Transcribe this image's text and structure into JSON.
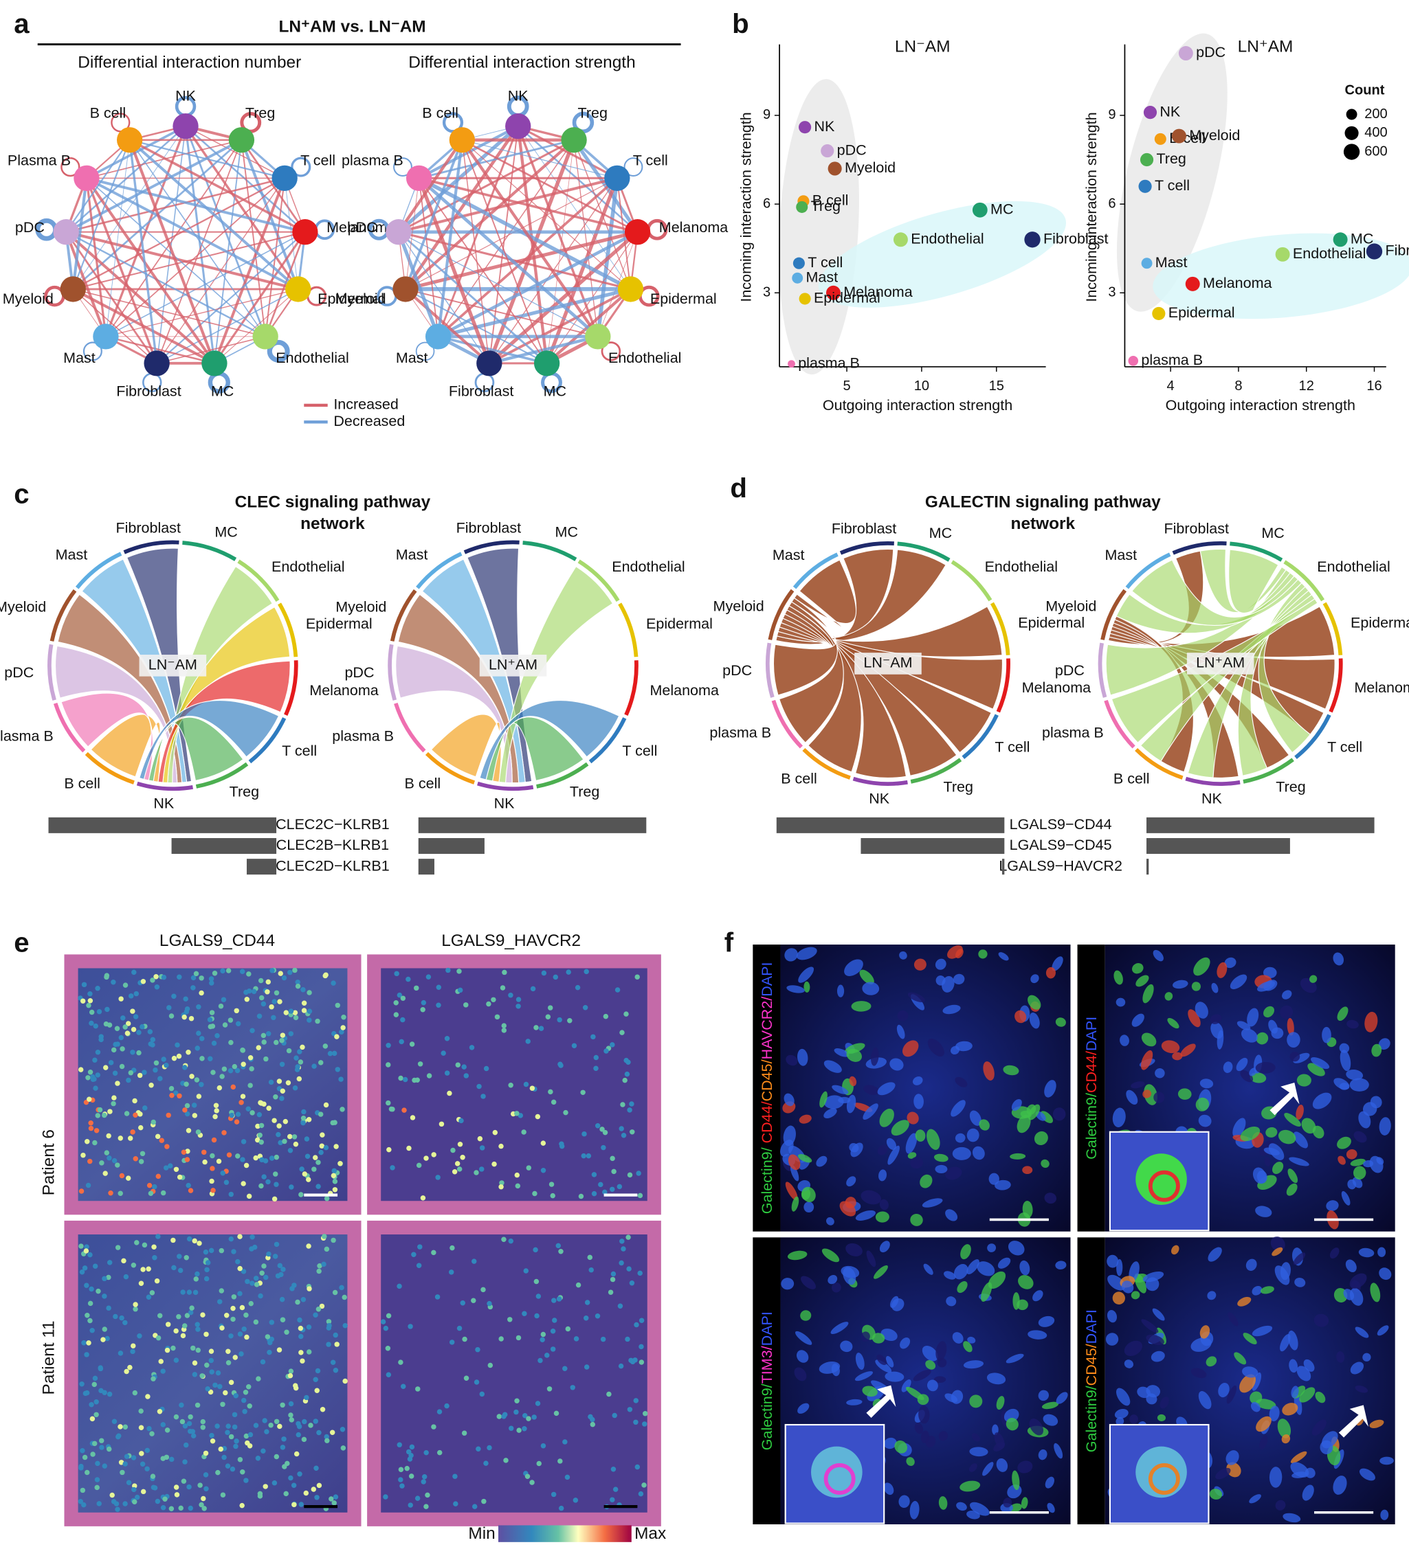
{
  "panel_labels": [
    "a",
    "b",
    "c",
    "d",
    "e",
    "f"
  ],
  "cell_colors": {
    "nk": "#8e44ad",
    "treg": "#4caf50",
    "t cell": "#2e7bbf",
    "melanoma": "#e41a1c",
    "epidermal": "#e6c200",
    "endothelial": "#a6d96a",
    "mc": "#1f9e6e",
    "fibroblast": "#1f2a6b",
    "mast": "#5dade2",
    "myeloid": "#a0522d",
    "pdc": "#c9a6d6",
    "plasma b": "#ef6fb0",
    "b cell": "#f39c12"
  },
  "panel_a": {
    "title": "LN⁺AM vs. LN⁻AM",
    "networks": [
      {
        "subtitle": "Differential interaction number",
        "nodes": [
          "NK",
          "Treg",
          "T cell",
          "Melanoma",
          "Epidermal",
          "Endothelial",
          "MC",
          "Fibroblast",
          "Mast",
          "Myeloid",
          "pDC",
          "Plasma B",
          "B cell"
        ]
      },
      {
        "subtitle": "Differential interaction strength",
        "nodes": [
          "NK",
          "Treg",
          "T cell",
          "Melanoma",
          "Epidermal",
          "Endothelial",
          "MC",
          "Fibroblast",
          "Mast",
          "Myeloid",
          "pDC",
          "plasma B",
          "B cell"
        ]
      }
    ],
    "legend": [
      {
        "name": "Increased",
        "color": "#d6616b"
      },
      {
        "name": "Decreased",
        "color": "#6f9fd8"
      }
    ]
  },
  "chart_data": [
    {
      "type": "scatter",
      "title": "LN⁻AM",
      "x_label": "Outgoing interaction strength",
      "y_label": "Incoming interaction strength",
      "xlim": [
        0.5,
        18.3
      ],
      "ylim": [
        0.5,
        11.4
      ],
      "xticks": [
        5,
        10,
        15
      ],
      "yticks": [
        3,
        6,
        9
      ],
      "points": {
        "labels": [
          "NK",
          "pDC",
          "Myeloid",
          "B cell",
          "Treg",
          "MC",
          "Endothelial",
          "Fibroblast",
          "T cell",
          "Mast",
          "Melanoma",
          "Epidermal",
          "plasma B"
        ],
        "x": [
          2.2,
          3.7,
          4.2,
          2.1,
          2.0,
          13.9,
          8.6,
          17.4,
          1.8,
          1.7,
          4.1,
          2.2,
          1.3
        ],
        "y": [
          8.6,
          7.8,
          7.2,
          6.1,
          5.9,
          5.8,
          4.8,
          4.8,
          4.0,
          3.5,
          3.0,
          2.8,
          0.6
        ],
        "size": [
          300,
          350,
          400,
          250,
          250,
          500,
          450,
          600,
          250,
          200,
          450,
          250,
          50
        ]
      }
    },
    {
      "type": "scatter",
      "title": "LN⁺AM",
      "x_label": "Outgoing interaction strength",
      "y_label": "Incoming interaction strength",
      "xlim": [
        1.3,
        16.7
      ],
      "ylim": [
        0.5,
        11.4
      ],
      "xticks": [
        4,
        8,
        12,
        16
      ],
      "yticks": [
        3,
        6,
        9
      ],
      "points": {
        "labels": [
          "pDC",
          "NK",
          "B cell",
          "Myeloid",
          "Treg",
          "T cell",
          "Endothelial",
          "MC",
          "Fibroblast",
          "Mast",
          "Melanoma",
          "Epidermal",
          "plasma B"
        ],
        "x": [
          4.9,
          2.8,
          3.4,
          4.5,
          2.6,
          2.5,
          10.6,
          14.0,
          16.0,
          2.6,
          5.3,
          3.3,
          1.8
        ],
        "y": [
          11.1,
          9.1,
          8.2,
          8.3,
          7.5,
          6.6,
          4.3,
          4.8,
          4.4,
          4.0,
          3.3,
          2.3,
          0.7
        ],
        "size": [
          450,
          350,
          250,
          450,
          350,
          350,
          450,
          450,
          600,
          200,
          450,
          350,
          150
        ]
      },
      "size_legend": {
        "title": "Count",
        "values": [
          200,
          400,
          600
        ]
      }
    }
  ],
  "panel_c": {
    "title_lines": [
      "CLEC signaling pathway",
      "network"
    ],
    "chords": [
      {
        "center": "LN⁻AM",
        "nodes": [
          "Fibroblast",
          "MC",
          "Endothelial",
          "Epidermal",
          "Melanoma",
          "T cell",
          "Treg",
          "NK",
          "B cell",
          "plasma B",
          "pDC",
          "Myeloid",
          "Mast"
        ]
      },
      {
        "center": "LN⁺AM",
        "nodes": [
          "Fibroblast",
          "MC",
          "Endothelial",
          "Epidermal",
          "Melanoma",
          "T cell",
          "Treg",
          "NK",
          "B cell",
          "plasma B",
          "pDC",
          "Myeloid",
          "Mast"
        ]
      }
    ],
    "pairs": {
      "labels": [
        "CLEC2C−KLRB1",
        "CLEC2B−KLRB1",
        "CLEC2D−KLRB1"
      ],
      "ln_minus": [
        1,
        0.46,
        0.13
      ],
      "ln_plus": [
        1,
        0.29,
        0.07
      ]
    }
  },
  "panel_d": {
    "title_lines": [
      "GALECTIN signaling pathway",
      "network"
    ],
    "chords": [
      {
        "center": "LN⁻AM",
        "nodes": [
          "Fibroblast",
          "MC",
          "Endothelial",
          "Epidermal",
          "Melanoma",
          "T cell",
          "Treg",
          "NK",
          "B cell",
          "plasma B",
          "pDC",
          "Myeloid",
          "Mast"
        ]
      },
      {
        "center": "LN⁺AM",
        "nodes": [
          "Fibroblast",
          "MC",
          "Endothelial",
          "Epidermal",
          "Melanoma",
          "T cell",
          "Treg",
          "NK",
          "B cell",
          "plasma B",
          "pDC",
          "Myeloid",
          "Mast"
        ]
      }
    ],
    "pairs": {
      "labels": [
        "LGALS9−CD44",
        "LGALS9−CD45",
        "LGALS9−HAVCR2"
      ],
      "ln_minus": [
        1,
        0.63,
        0.01
      ],
      "ln_plus": [
        1,
        0.63,
        0.01
      ]
    }
  },
  "panel_e": {
    "columns": [
      "LGALS9_CD44",
      "LGALS9_HAVCR2"
    ],
    "rows": [
      "Patient 6",
      "Patient 11"
    ],
    "colorbar": [
      "Min",
      "Max"
    ]
  },
  "panel_f": {
    "stains": [
      [
        {
          "text": "Galectin9/ ",
          "color": "#2ecc40"
        },
        {
          "text": "CD44/",
          "color": "#ff2020"
        },
        {
          "text": "CD45/",
          "color": "#ff8c1a"
        },
        {
          "text": "HAVCR2/",
          "color": "#ff33cc"
        },
        {
          "text": "DAPI",
          "color": "#3355ff"
        }
      ],
      [
        {
          "text": "Galectin9/",
          "color": "#2ecc40"
        },
        {
          "text": "CD44/",
          "color": "#ff2020"
        },
        {
          "text": "DAPI",
          "color": "#3355ff"
        }
      ],
      [
        {
          "text": "Galectin9/",
          "color": "#2ecc40"
        },
        {
          "text": "TIM3/",
          "color": "#ff33cc"
        },
        {
          "text": "DAPI",
          "color": "#3355ff"
        }
      ],
      [
        {
          "text": "Galectin9/",
          "color": "#2ecc40"
        },
        {
          "text": "CD45/",
          "color": "#ff8c1a"
        },
        {
          "text": "DAPI",
          "color": "#3355ff"
        }
      ]
    ]
  }
}
